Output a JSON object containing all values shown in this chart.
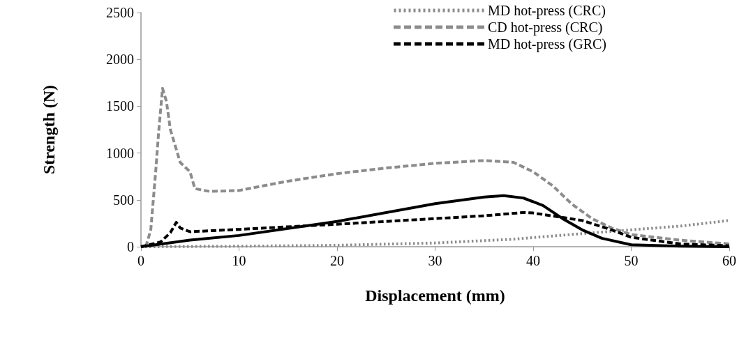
{
  "chart_data": {
    "type": "line",
    "xlabel": "Displacement (mm)",
    "ylabel": "Strength (N)",
    "xlim": [
      0,
      60
    ],
    "xticks": [
      0,
      10,
      20,
      30,
      40,
      50,
      60
    ],
    "ylim": [
      0,
      2500
    ],
    "yticks": [
      0,
      500,
      1000,
      1500,
      2000,
      2500
    ],
    "grid": false,
    "legend": "top right",
    "marker": "none",
    "series": [
      {
        "name": "MD hot-press (CRC)",
        "color": "#8c8c8c",
        "line_style": "dotted",
        "x": [
          0,
          10,
          20,
          30,
          38,
          45,
          50,
          55,
          60
        ],
        "values": [
          0,
          5,
          15,
          40,
          80,
          140,
          180,
          220,
          280
        ]
      },
      {
        "name": "CD hot-press (CRC)",
        "color": "#8c8c8c",
        "line_style": "dashed",
        "x": [
          0.5,
          1,
          1.5,
          1.8,
          2.2,
          2.6,
          3,
          4,
          5,
          5.5,
          7,
          10,
          15,
          20,
          25,
          30,
          35,
          38,
          40,
          42,
          44,
          46,
          48,
          50,
          55,
          60
        ],
        "values": [
          0,
          180,
          800,
          1220,
          1690,
          1550,
          1250,
          900,
          800,
          620,
          590,
          600,
          700,
          780,
          840,
          890,
          920,
          900,
          800,
          650,
          450,
          300,
          200,
          130,
          70,
          30
        ]
      },
      {
        "name": "MD hot-press (GRC)",
        "color": "#000000",
        "line_style": "dashed",
        "x": [
          0,
          2,
          3,
          3.6,
          4,
          5,
          10,
          20,
          30,
          35,
          39,
          40,
          45,
          48,
          50,
          55,
          60
        ],
        "values": [
          0,
          50,
          150,
          260,
          200,
          160,
          185,
          240,
          300,
          330,
          365,
          360,
          280,
          180,
          100,
          30,
          10
        ]
      },
      {
        "color": "#000000",
        "line_style": "solid",
        "x": [
          0,
          5,
          10,
          20,
          30,
          35,
          37,
          39,
          41,
          43,
          45,
          47,
          50,
          55,
          60
        ],
        "values": [
          0,
          70,
          120,
          270,
          460,
          530,
          545,
          520,
          440,
          300,
          180,
          90,
          20,
          5,
          0
        ]
      }
    ]
  }
}
